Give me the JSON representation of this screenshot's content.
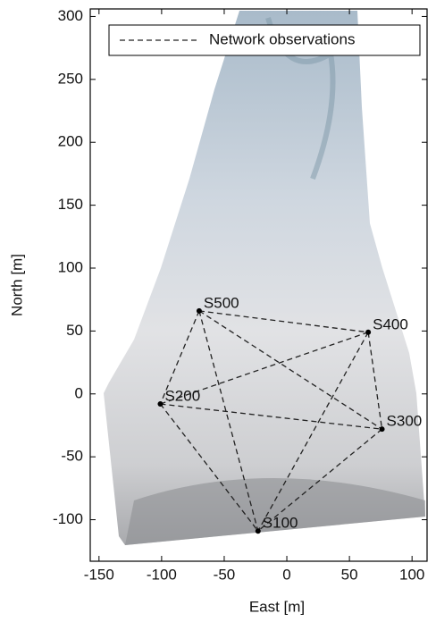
{
  "chart_data": {
    "type": "scatter",
    "x_label": "East [m]",
    "y_label": "North [m]",
    "xlim": [
      -157,
      112
    ],
    "ylim": [
      -133,
      306
    ],
    "xticks": [
      -150,
      -100,
      -50,
      0,
      50,
      100
    ],
    "yticks": [
      -100,
      -50,
      0,
      50,
      100,
      150,
      200,
      250,
      300
    ],
    "legend": "upper right",
    "points": {
      "labels": [
        "S500",
        "S400",
        "S200",
        "S300",
        "S100"
      ],
      "x": [
        -70,
        65,
        -101,
        76,
        -23
      ],
      "y": [
        66,
        49,
        -8,
        -28,
        -109
      ],
      "color": "#000000"
    },
    "series": [
      {
        "name": "Network observations",
        "color": "#222222",
        "links": [
          [
            "S500",
            "S400"
          ],
          [
            "S500",
            "S200"
          ],
          [
            "S500",
            "S300"
          ],
          [
            "S500",
            "S100"
          ],
          [
            "S400",
            "S200"
          ],
          [
            "S400",
            "S300"
          ],
          [
            "S400",
            "S100"
          ],
          [
            "S200",
            "S300"
          ],
          [
            "S200",
            "S100"
          ],
          [
            "S300",
            "S100"
          ]
        ]
      }
    ]
  }
}
